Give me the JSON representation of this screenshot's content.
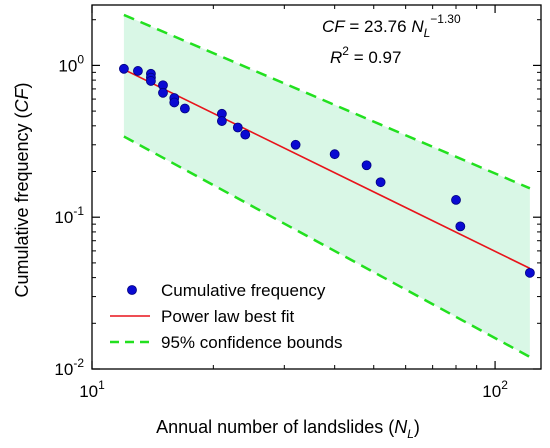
{
  "chart_data": {
    "type": "scatter",
    "xscale": "log",
    "yscale": "log",
    "xlim": [
      10,
      130
    ],
    "ylim": [
      0.01,
      2.5
    ],
    "xlabel": {
      "prefix": "Annual number of landslides (",
      "var": "N",
      "sub": "L",
      "suffix": ")"
    },
    "ylabel": {
      "prefix": "Cumulative frequency (",
      "var": "CF",
      "suffix": ")"
    },
    "x_ticks": [
      {
        "value": 10,
        "base": "10",
        "exp": "1"
      },
      {
        "value": 100,
        "base": "10",
        "exp": "2"
      }
    ],
    "y_ticks": [
      {
        "value": 0.01,
        "base": "10",
        "exp": "-2"
      },
      {
        "value": 0.1,
        "base": "10",
        "exp": "-1"
      },
      {
        "value": 1,
        "base": "10",
        "exp": "0"
      }
    ],
    "grid": false,
    "series": [
      {
        "name": "Cumulative frequency",
        "kind": "points",
        "color": "#0a0ad2",
        "x": [
          12,
          13,
          14,
          14,
          14,
          15,
          15,
          16,
          16,
          17,
          21,
          21,
          23,
          24,
          32,
          40,
          48,
          52,
          80,
          82,
          122
        ],
        "y": [
          0.95,
          0.92,
          0.88,
          0.83,
          0.79,
          0.74,
          0.66,
          0.61,
          0.57,
          0.52,
          0.48,
          0.43,
          0.39,
          0.35,
          0.3,
          0.26,
          0.22,
          0.17,
          0.13,
          0.087,
          0.043
        ]
      },
      {
        "name": "Power law best fit",
        "kind": "line",
        "color": "#e8141b",
        "x": [
          12,
          122
        ],
        "y": [
          0.94,
          0.046
        ]
      },
      {
        "name": "95% confidence bounds",
        "kind": "band",
        "color": "#22e01f",
        "fill": "#d9f7e6",
        "x": [
          12,
          122
        ],
        "upper": [
          2.15,
          0.155
        ],
        "lower": [
          0.34,
          0.012
        ]
      }
    ],
    "equation": {
      "lhs": "CF",
      "eq": " = 23.76 ",
      "var": "N",
      "sub": "L",
      "exp": "−1.30"
    },
    "r2": {
      "var": "R",
      "exp": "2",
      "rest": " = 0.97"
    },
    "legend": {
      "position": "bottom-left",
      "items": [
        {
          "label": "Cumulative frequency",
          "kind": "marker"
        },
        {
          "label": "Power law best fit",
          "kind": "line"
        },
        {
          "label": "95% confidence bounds",
          "kind": "dashed"
        }
      ]
    }
  }
}
